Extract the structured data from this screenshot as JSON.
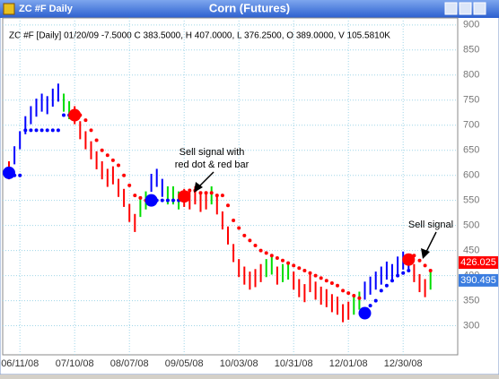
{
  "window_title": "ZC #F Daily",
  "chart_data": {
    "type": "range-bar",
    "title": "Corn (Futures)",
    "readout": "ZC #F [Daily] 01/20/09 -7.5000 C 383.5000, H 407.0000, L 376.2500, O 389.0000, V 105.5810K",
    "annotations": [
      "Sell signal with",
      "red dot & red bar",
      "Sell signal"
    ],
    "categories": [
      null,
      null,
      "06/11/08",
      null,
      null,
      null,
      null,
      null,
      null,
      null,
      null,
      null,
      "07/10/08",
      null,
      null,
      null,
      null,
      null,
      null,
      null,
      null,
      null,
      "08/07/08",
      null,
      null,
      null,
      null,
      null,
      null,
      null,
      null,
      null,
      "09/05/08",
      null,
      null,
      null,
      null,
      null,
      null,
      null,
      null,
      null,
      "10/03/08",
      null,
      null,
      null,
      null,
      null,
      null,
      null,
      null,
      null,
      "10/31/08",
      null,
      null,
      null,
      null,
      null,
      null,
      null,
      null,
      null,
      "12/01/08",
      null,
      null,
      null,
      null,
      null,
      null,
      null,
      null,
      null,
      "12/30/08",
      null,
      null,
      null,
      null,
      null
    ],
    "high": [
      628,
      658,
      688,
      718,
      738,
      753,
      763,
      758,
      773,
      783,
      763,
      748,
      738,
      708,
      688,
      668,
      648,
      628,
      613,
      618,
      593,
      573,
      543,
      523,
      553,
      568,
      603,
      613,
      593,
      578,
      578,
      568,
      573,
      568,
      578,
      563,
      568,
      578,
      558,
      528,
      498,
      463,
      433,
      418,
      408,
      413,
      423,
      433,
      438,
      418,
      423,
      428,
      408,
      393,
      383,
      403,
      388,
      378,
      373,
      363,
      358,
      343,
      348,
      358,
      368,
      388,
      398,
      408,
      418,
      428,
      423,
      438,
      448,
      443,
      423,
      403,
      393,
      408
    ],
    "low": [
      592,
      622,
      652,
      682,
      702,
      717,
      727,
      722,
      737,
      747,
      727,
      712,
      702,
      672,
      652,
      632,
      612,
      592,
      577,
      582,
      557,
      537,
      507,
      487,
      517,
      532,
      567,
      577,
      557,
      542,
      542,
      532,
      537,
      532,
      542,
      527,
      532,
      542,
      522,
      492,
      462,
      427,
      397,
      382,
      372,
      377,
      387,
      397,
      402,
      382,
      387,
      392,
      372,
      357,
      347,
      367,
      352,
      342,
      337,
      327,
      322,
      307,
      312,
      322,
      332,
      352,
      362,
      372,
      382,
      392,
      387,
      402,
      412,
      407,
      387,
      367,
      357,
      372
    ],
    "palette": {
      "b": "#0000ff",
      "r": "#ff0000",
      "g": "#00dd00"
    },
    "bar_colors": [
      "r",
      "b",
      "b",
      "b",
      "b",
      "b",
      "b",
      "b",
      "b",
      "b",
      "g",
      "g",
      "r",
      "r",
      "r",
      "r",
      "r",
      "r",
      "r",
      "r",
      "r",
      "r",
      "r",
      "r",
      "g",
      "g",
      "b",
      "b",
      "b",
      "g",
      "g",
      "g",
      "r",
      "r",
      "r",
      "r",
      "r",
      "g",
      "r",
      "r",
      "r",
      "r",
      "r",
      "r",
      "r",
      "r",
      "r",
      "g",
      "g",
      "r",
      "g",
      "g",
      "r",
      "r",
      "r",
      "r",
      "r",
      "r",
      "r",
      "r",
      "r",
      "r",
      "r",
      "g",
      "g",
      "b",
      "b",
      "b",
      "b",
      "b",
      "b",
      "b",
      "b",
      "b",
      "r",
      "r",
      "r",
      "g"
    ],
    "stops": [
      null,
      600,
      600,
      690,
      690,
      690,
      690,
      690,
      690,
      690,
      720,
      720,
      null,
      720,
      710,
      690,
      670,
      650,
      640,
      630,
      620,
      600,
      580,
      560,
      555,
      550,
      null,
      550,
      550,
      550,
      550,
      550,
      null,
      570,
      570,
      565,
      565,
      565,
      560,
      560,
      540,
      510,
      495,
      480,
      470,
      460,
      450,
      445,
      440,
      435,
      430,
      425,
      420,
      415,
      410,
      405,
      400,
      395,
      390,
      385,
      380,
      370,
      365,
      360,
      355,
      null,
      340,
      350,
      370,
      380,
      390,
      400,
      405,
      410,
      440,
      430,
      420,
      410
    ],
    "stop_colors": [
      "b",
      "b",
      "b",
      "b",
      "b",
      "b",
      "b",
      "b",
      "b",
      "b",
      "b",
      "b",
      "r",
      "r",
      "r",
      "r",
      "r",
      "r",
      "r",
      "r",
      "r",
      "r",
      "r",
      "r",
      "r",
      "r",
      "b",
      "b",
      "b",
      "b",
      "b",
      "b",
      "r",
      "r",
      "r",
      "r",
      "r",
      "r",
      "r",
      "r",
      "r",
      "r",
      "r",
      "r",
      "r",
      "r",
      "r",
      "r",
      "r",
      "r",
      "r",
      "r",
      "r",
      "r",
      "r",
      "r",
      "r",
      "r",
      "r",
      "r",
      "r",
      "r",
      "r",
      "r",
      "r",
      "b",
      "b",
      "b",
      "b",
      "b",
      "b",
      "b",
      "b",
      "b",
      "r",
      "r",
      "r",
      "r"
    ],
    "buy_signals": [
      605,
      null,
      null,
      null,
      null,
      null,
      null,
      null,
      null,
      null,
      null,
      null,
      null,
      null,
      null,
      null,
      null,
      null,
      null,
      null,
      null,
      null,
      null,
      null,
      null,
      null,
      550,
      null,
      null,
      null,
      null,
      null,
      null,
      null,
      null,
      null,
      null,
      null,
      null,
      null,
      null,
      null,
      null,
      null,
      null,
      null,
      null,
      null,
      null,
      null,
      null,
      null,
      null,
      null,
      null,
      null,
      null,
      null,
      null,
      null,
      null,
      null,
      null,
      null,
      null,
      325,
      null,
      null,
      null,
      null,
      null,
      null,
      null,
      null,
      null,
      null,
      null,
      null
    ],
    "sell_signals": [
      null,
      null,
      null,
      null,
      null,
      null,
      null,
      null,
      null,
      null,
      null,
      null,
      720,
      null,
      null,
      null,
      null,
      null,
      null,
      null,
      null,
      null,
      null,
      null,
      null,
      null,
      null,
      null,
      null,
      null,
      null,
      null,
      558,
      null,
      null,
      null,
      null,
      null,
      null,
      null,
      null,
      null,
      null,
      null,
      null,
      null,
      null,
      null,
      null,
      null,
      null,
      null,
      null,
      null,
      null,
      null,
      null,
      null,
      null,
      null,
      null,
      null,
      null,
      null,
      null,
      null,
      null,
      null,
      null,
      null,
      null,
      null,
      null,
      432,
      null,
      null,
      null,
      null
    ],
    "price_labels": [
      {
        "value": 426.025,
        "color": "#ff0000"
      },
      {
        "value": 390.495,
        "color": "#3b7de0"
      }
    ],
    "ylim": [
      242,
      914
    ],
    "yticks": [
      300,
      350,
      400,
      450,
      500,
      550,
      600,
      650,
      700,
      750,
      800,
      850,
      900
    ],
    "grid": true
  }
}
